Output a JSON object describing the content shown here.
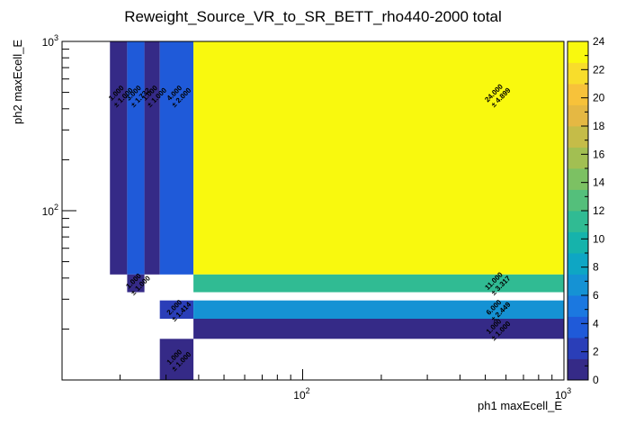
{
  "chart_data": {
    "type": "heatmap",
    "title": "Reweight_Source_VR_to_SR_BETT_rho440-2000 total",
    "xlabel": "ph1 maxEcell_E",
    "ylabel": "ph2 maxEcell_E",
    "x_scale": "log",
    "y_scale": "log",
    "xlim": [
      12,
      1000
    ],
    "ylim": [
      10,
      1000
    ],
    "x_tick_labels": [
      {
        "value": 100,
        "base": "10",
        "exp": "2"
      },
      {
        "value": 1000,
        "base": "10",
        "exp": "3"
      }
    ],
    "y_tick_labels": [
      {
        "value": 100,
        "base": "10",
        "exp": "2"
      },
      {
        "value": 1000,
        "base": "10",
        "exp": "3"
      }
    ],
    "z_range": [
      0,
      24
    ],
    "z_tick_labels": [
      "0",
      "2",
      "4",
      "6",
      "8",
      "10",
      "12",
      "14",
      "16",
      "18",
      "20",
      "22",
      "24"
    ],
    "palette": [
      "#352a87",
      "#2a3eb8",
      "#1f5ad9",
      "#1b78e0",
      "#1592d4",
      "#0ea6c4",
      "#16b3ab",
      "#30bb93",
      "#54bf7b",
      "#7cc163",
      "#a2bf52",
      "#c5bc48",
      "#e5b843",
      "#f7c23a",
      "#f8dd2b",
      "#f9f90e"
    ],
    "cells": [
      {
        "x0": 18.3,
        "x1": 21.3,
        "y0": 42,
        "y1": 1000,
        "value": 1,
        "label": "1.000",
        "err": "± 1.000"
      },
      {
        "x0": 21.3,
        "x1": 24.8,
        "y0": 42,
        "y1": 1000,
        "value": 3,
        "label": "3.000",
        "err": "± 1.732"
      },
      {
        "x0": 24.8,
        "x1": 28.4,
        "y0": 42,
        "y1": 1000,
        "value": 1,
        "label": "1.000",
        "err": "± 1.000"
      },
      {
        "x0": 28.4,
        "x1": 38.2,
        "y0": 42,
        "y1": 1000,
        "value": 4,
        "label": "4.000",
        "err": "± 2.000"
      },
      {
        "x0": 38.2,
        "x1": 1000,
        "y0": 42,
        "y1": 1000,
        "value": 24,
        "label": "24.000",
        "err": "± 4.899"
      },
      {
        "x0": 21.3,
        "x1": 24.8,
        "y0": 33,
        "y1": 42,
        "value": 1,
        "label": "1.000",
        "err": "± 1.000"
      },
      {
        "x0": 38.2,
        "x1": 1000,
        "y0": 33,
        "y1": 42,
        "value": 11,
        "label": "11.000",
        "err": "± 3.317"
      },
      {
        "x0": 28.4,
        "x1": 38.2,
        "y0": 23,
        "y1": 29.5,
        "value": 2,
        "label": "2.000",
        "err": "± 1.414"
      },
      {
        "x0": 38.2,
        "x1": 1000,
        "y0": 23,
        "y1": 29.5,
        "value": 6,
        "label": "6.000",
        "err": "± 2.449"
      },
      {
        "x0": 38.2,
        "x1": 1000,
        "y0": 17.5,
        "y1": 23,
        "value": 1,
        "label": "1.000",
        "err": "± 1.000"
      },
      {
        "x0": 28.4,
        "x1": 38.2,
        "y0": 10,
        "y1": 17.5,
        "value": 1,
        "label": "1.000",
        "err": "± 1.000"
      }
    ]
  }
}
